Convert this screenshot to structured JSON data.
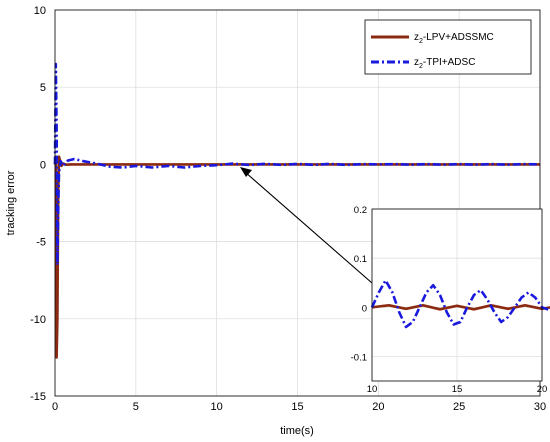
{
  "chart_data": [
    {
      "type": "line",
      "xlabel": "time(s)",
      "ylabel": "tracking error",
      "xlim": [
        0,
        30
      ],
      "ylim": [
        -15,
        10
      ],
      "xticks": [
        "0",
        "5",
        "10",
        "15",
        "20",
        "25",
        "30"
      ],
      "yticks": [
        "10",
        "5",
        "0",
        "-5",
        "-10",
        "-15"
      ],
      "grid": true,
      "legend": "top-right",
      "series": [
        {
          "name": "z2-LPV+ADSSMC",
          "name_main": "z",
          "name_sub": "2",
          "name_rest": "-LPV+ADSSMC",
          "color": "#8b2a10",
          "style": "solid",
          "x": [
            0,
            0.05,
            0.1,
            0.15,
            0.2,
            0.25,
            0.3,
            0.4,
            0.5,
            0.7,
            1.0,
            2,
            5,
            10,
            15,
            20,
            25,
            30
          ],
          "y": [
            0,
            0.5,
            -12.5,
            -10,
            -2,
            0.5,
            0.3,
            -0.1,
            0.05,
            -0.02,
            0,
            0,
            0,
            0,
            0,
            0,
            0,
            0
          ]
        },
        {
          "name": "z2-TPI+ADSC",
          "name_main": "z",
          "name_sub": "2",
          "name_rest": "-TPI+ADSC",
          "color": "#1a1adf",
          "style": "dashdot",
          "x": [
            0,
            0.05,
            0.1,
            0.15,
            0.2,
            0.25,
            0.35,
            0.5,
            0.8,
            1.2,
            1.8,
            2.6,
            3.4,
            4.2,
            5.0,
            6.0,
            7.0,
            8.0,
            9.0,
            10.0,
            11.0,
            12.0,
            13.0,
            14.0,
            15.0,
            16.0,
            17.0,
            18.0,
            19.0,
            20.0,
            21.0,
            22.0,
            23.0,
            24.0,
            25.0,
            26.0,
            27.0,
            28.0,
            29.0,
            30.0
          ],
          "y": [
            0,
            6.5,
            2.5,
            -6.5,
            -3,
            -0.5,
            0.2,
            -0.1,
            0.25,
            0.35,
            0.2,
            0.05,
            -0.15,
            -0.2,
            -0.1,
            -0.2,
            -0.1,
            -0.2,
            -0.1,
            -0.05,
            0.05,
            -0.04,
            0.04,
            -0.03,
            0.03,
            -0.03,
            0.03,
            -0.03,
            0.02,
            0,
            0.02,
            -0.02,
            0.02,
            -0.02,
            0.02,
            -0.02,
            0.02,
            -0.02,
            0.02,
            0
          ]
        }
      ]
    },
    {
      "type": "line",
      "inset": true,
      "xlim": [
        10,
        20
      ],
      "ylim": [
        -0.15,
        0.2
      ],
      "xticks": [
        "10",
        "15",
        "20"
      ],
      "yticks": [
        "0.2",
        "0.1",
        "0",
        "-0.1"
      ],
      "grid": true,
      "series": [
        {
          "name": "z2-LPV+ADSSMC",
          "color": "#8b2a10",
          "style": "solid",
          "x": [
            10,
            11,
            12,
            13,
            14,
            15,
            16,
            17,
            18,
            19,
            20,
            20.5
          ],
          "y": [
            0,
            0.004,
            -0.003,
            0.004,
            -0.004,
            0.003,
            -0.004,
            0.004,
            -0.003,
            0.004,
            -0.003,
            0
          ]
        },
        {
          "name": "z2-TPI+ADSC",
          "color": "#1a1adf",
          "style": "dashdot",
          "x": [
            10,
            10.4,
            10.8,
            11.2,
            11.6,
            12,
            12.4,
            12.8,
            13.2,
            13.6,
            14,
            14.4,
            14.8,
            15.2,
            15.6,
            16,
            16.4,
            16.8,
            17.2,
            17.6,
            18,
            18.4,
            18.8,
            19.2,
            19.6,
            20,
            20.4
          ],
          "y": [
            0,
            0.03,
            0.055,
            0.03,
            -0.01,
            -0.04,
            -0.03,
            0.0,
            0.03,
            0.045,
            0.025,
            -0.01,
            -0.035,
            -0.03,
            0.0,
            0.025,
            0.035,
            0.015,
            -0.01,
            -0.03,
            -0.02,
            0.0,
            0.02,
            0.03,
            0.02,
            0.0,
            -0.005
          ]
        }
      ]
    }
  ]
}
